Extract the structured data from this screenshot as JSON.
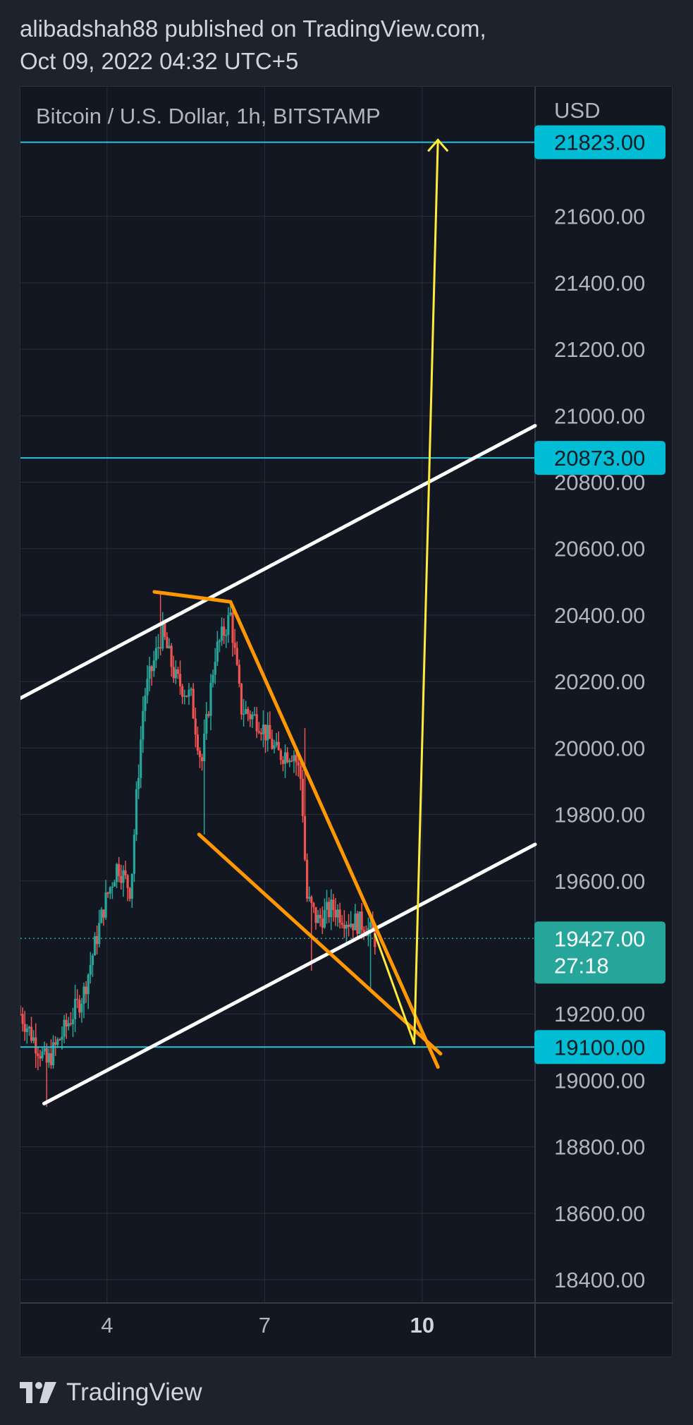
{
  "header": {
    "line1": "alibadshah88 published on TradingView.com,",
    "line2": "Oct 09, 2022 04:32 UTC+5"
  },
  "footer": {
    "brand": "TradingView",
    "logo_icon": "tradingview-logo-icon"
  },
  "colors": {
    "background": "#131722",
    "grid": "#2a2e39",
    "text": "#b2b5be",
    "up": "#26a69a",
    "down": "#ef5350",
    "hline": "#26c6da",
    "label_bg": "#00bcd4",
    "price_label_bg": "#26a69a",
    "channel": "#ffffff",
    "wedge": "#ff9800",
    "target_arrow": "#ffeb3b"
  },
  "chart_data": {
    "type": "candlestick",
    "title": "Bitcoin / U.S. Dollar, 1h, BITSTAMP",
    "y_axis_unit": "USD",
    "ylim": [
      18330,
      21990
    ],
    "y_ticks": [
      {
        "value": 18400,
        "label": "18400.00"
      },
      {
        "value": 18600,
        "label": "18600.00"
      },
      {
        "value": 18800,
        "label": "18800.00"
      },
      {
        "value": 19000,
        "label": "19000.00"
      },
      {
        "value": 19200,
        "label": "19200.00"
      },
      {
        "value": 19600,
        "label": "19600.00"
      },
      {
        "value": 19800,
        "label": "19800.00"
      },
      {
        "value": 20000,
        "label": "20000.00"
      },
      {
        "value": 20200,
        "label": "20200.00"
      },
      {
        "value": 20400,
        "label": "20400.00"
      },
      {
        "value": 20600,
        "label": "20600.00"
      },
      {
        "value": 20800,
        "label": "20800.00"
      },
      {
        "value": 21000,
        "label": "21000.00"
      },
      {
        "value": 21200,
        "label": "21200.00"
      },
      {
        "value": 21400,
        "label": "21400.00"
      },
      {
        "value": 21600,
        "label": "21600.00"
      }
    ],
    "xlim": [
      2.35,
      12.15
    ],
    "x_ticks": [
      {
        "value": 4,
        "label": "4",
        "bold": false
      },
      {
        "value": 7,
        "label": "7",
        "bold": false
      },
      {
        "value": 10,
        "label": "10",
        "bold": true
      }
    ],
    "x_grid": [
      1.0,
      4.0,
      7.0,
      10.0
    ],
    "horizontal_lines": [
      {
        "price": 21823,
        "label": "21823.00"
      },
      {
        "price": 20873,
        "label": "20873.00"
      },
      {
        "price": 19100,
        "label": "19100.00"
      }
    ],
    "current_price": {
      "value": 19427,
      "label": "19427.00",
      "countdown": "27:18"
    },
    "anchors": [
      {
        "day": 2.35,
        "price": 19200
      },
      {
        "day": 2.85,
        "price": 19050
      },
      {
        "day": 3.55,
        "price": 19260
      },
      {
        "day": 3.95,
        "price": 19530
      },
      {
        "day": 4.2,
        "price": 19650
      },
      {
        "day": 4.45,
        "price": 19570
      },
      {
        "day": 4.55,
        "price": 19830
      },
      {
        "day": 4.7,
        "price": 20150
      },
      {
        "day": 5.05,
        "price": 20350
      },
      {
        "day": 5.3,
        "price": 20210
      },
      {
        "day": 5.6,
        "price": 20150
      },
      {
        "day": 5.8,
        "price": 19950
      },
      {
        "day": 6.05,
        "price": 20280
      },
      {
        "day": 6.35,
        "price": 20400
      },
      {
        "day": 6.55,
        "price": 20120
      },
      {
        "day": 6.9,
        "price": 20080
      },
      {
        "day": 7.25,
        "price": 19980
      },
      {
        "day": 7.55,
        "price": 19990
      },
      {
        "day": 7.7,
        "price": 19900
      },
      {
        "day": 7.8,
        "price": 19550
      },
      {
        "day": 8.0,
        "price": 19480
      },
      {
        "day": 8.3,
        "price": 19520
      },
      {
        "day": 8.6,
        "price": 19480
      },
      {
        "day": 8.9,
        "price": 19470
      },
      {
        "day": 9.1,
        "price": 19427
      }
    ],
    "wicks": [
      {
        "day": 2.85,
        "low": 18920
      },
      {
        "day": 5.0,
        "high": 20470
      },
      {
        "day": 6.35,
        "high": 20440
      },
      {
        "day": 5.85,
        "low": 19740
      },
      {
        "day": 7.75,
        "high": 20060
      },
      {
        "day": 7.9,
        "low": 19330
      },
      {
        "day": 9.02,
        "low": 19270
      }
    ],
    "drawings": {
      "channel_upper": [
        [
          2.35,
          20150
        ],
        [
          12.15,
          20970
        ]
      ],
      "channel_lower": [
        [
          2.8,
          18930
        ],
        [
          12.15,
          19710
        ]
      ],
      "wedge_top": [
        [
          4.9,
          20470
        ],
        [
          6.35,
          20440
        ]
      ],
      "wedge_upper": [
        [
          6.35,
          20440
        ],
        [
          10.3,
          19040
        ]
      ],
      "wedge_lower": [
        [
          5.75,
          19740
        ],
        [
          10.35,
          19080
        ]
      ],
      "projection": [
        [
          9.1,
          19440
        ],
        [
          9.85,
          19110
        ],
        [
          10.3,
          21830
        ]
      ]
    }
  }
}
